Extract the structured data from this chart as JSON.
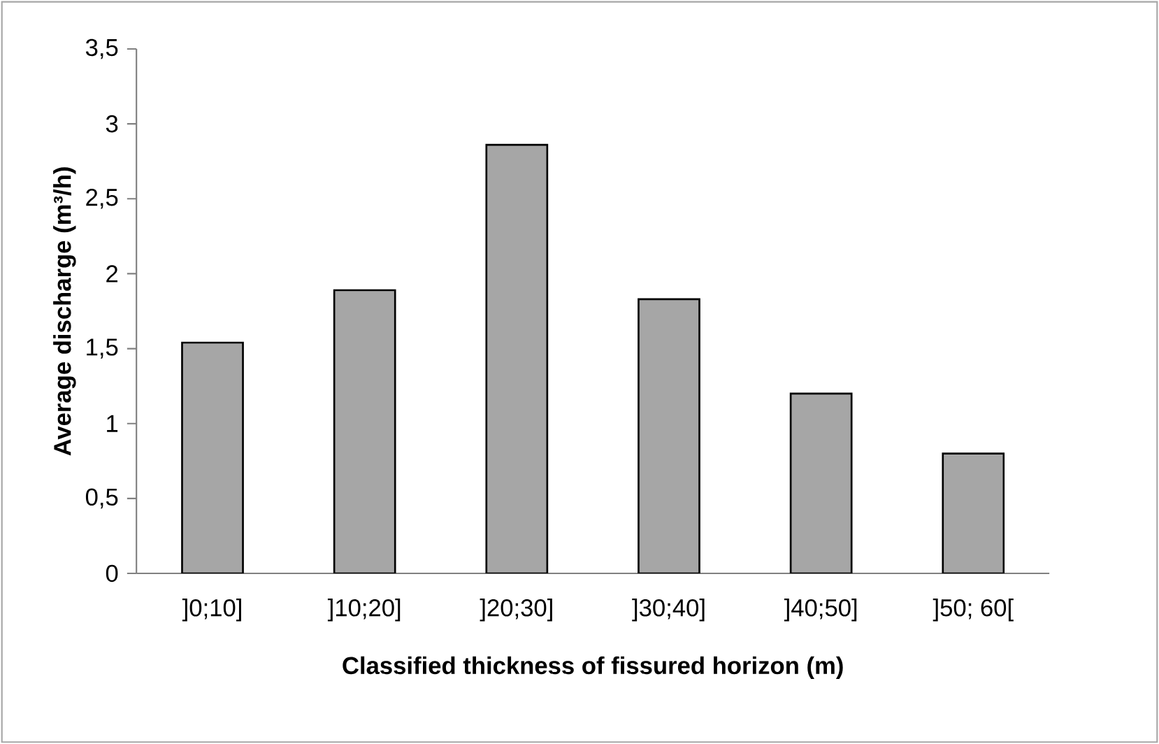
{
  "chart_data": {
    "type": "bar",
    "xlabel": "Classified thickness of fissured horizon (m)",
    "ylabel": "Average discharge (m³/h)",
    "categories": [
      "]0;10]",
      "]10;20]",
      "]20;30]",
      "]30;40]",
      "]40;50]",
      "]50; 60["
    ],
    "values": [
      1.54,
      1.89,
      2.86,
      1.83,
      1.2,
      0.8
    ],
    "color": "#a6a6a6",
    "ylim": [
      0,
      3.5
    ],
    "yticks": [
      0,
      {
        "value": 0.5,
        "label": "0,5"
      },
      1,
      {
        "value": 1.5,
        "label": "1,5"
      },
      2,
      {
        "value": 2.5,
        "label": "2,5"
      },
      3,
      {
        "value": 3.5,
        "label": "3,5"
      }
    ],
    "grid": false
  }
}
